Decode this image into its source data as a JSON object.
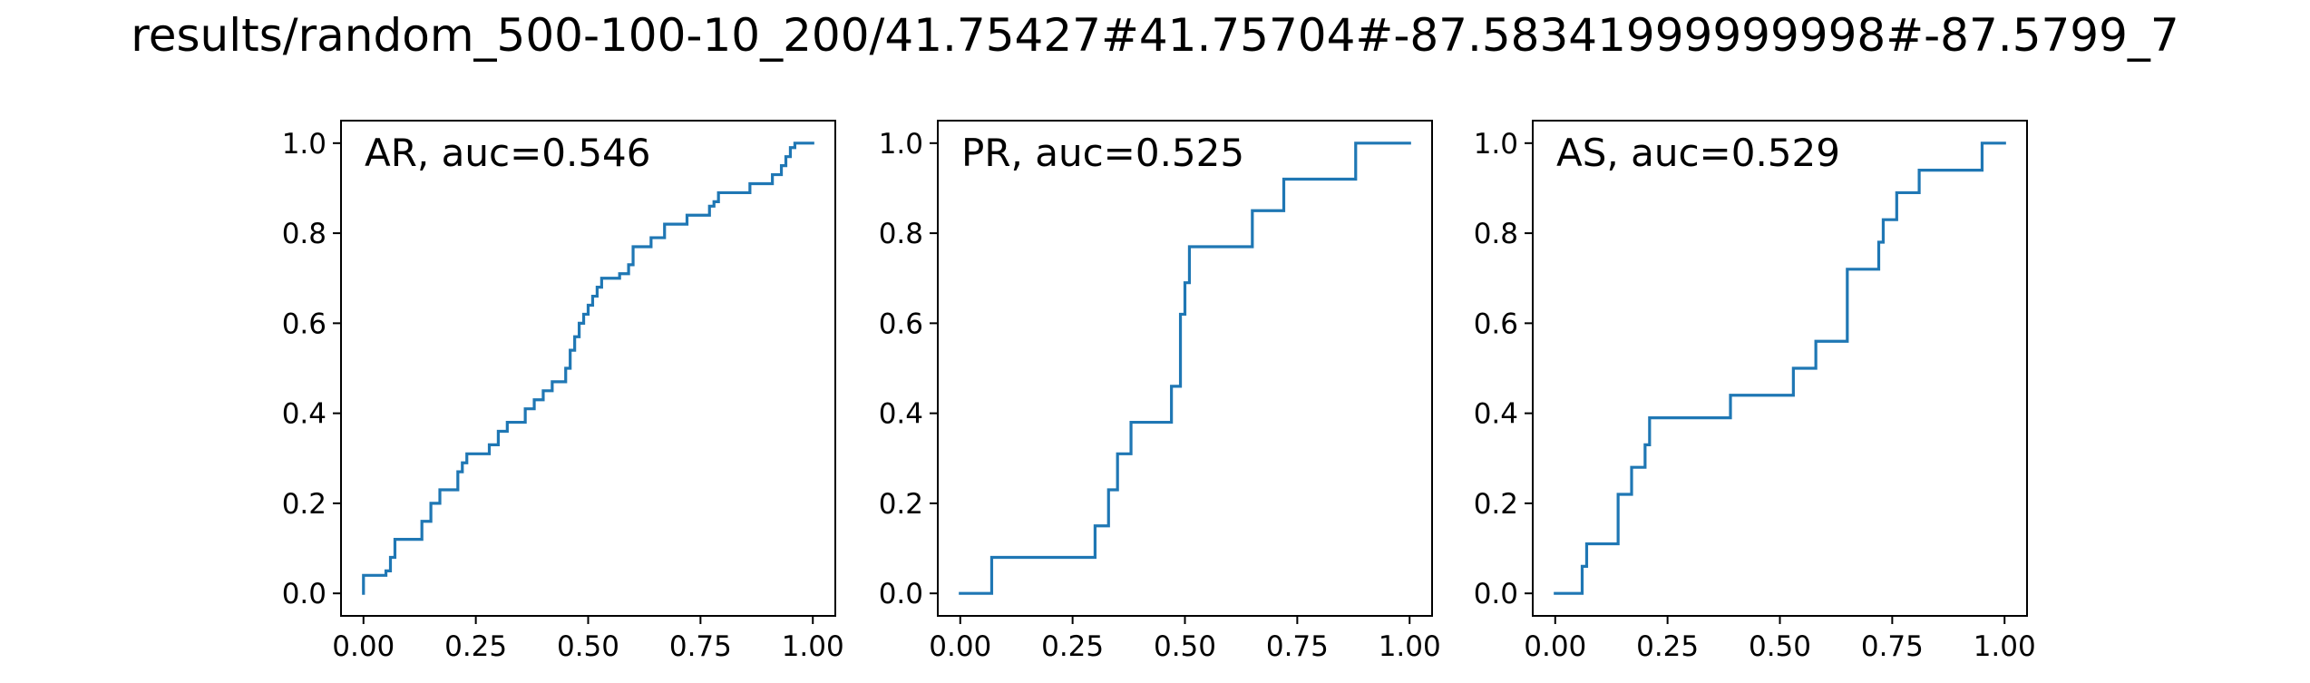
{
  "figure": {
    "title": "results/random_500-100-10_200/41.75427#41.75704#-87.58341999999998#-87.5799_7"
  },
  "chart_data": [
    {
      "type": "line",
      "label": "AR, auc=0.546",
      "xlim": [
        -0.05,
        1.05
      ],
      "ylim": [
        -0.05,
        1.05
      ],
      "xticks": [
        "0.00",
        "0.25",
        "0.50",
        "0.75",
        "1.00"
      ],
      "yticks": [
        "0.0",
        "0.2",
        "0.4",
        "0.6",
        "0.8",
        "1.0"
      ],
      "grid": false,
      "color": "#1f77b4",
      "series": [
        {
          "x": [
            0,
            0,
            0.05,
            0.05,
            0.06,
            0.06,
            0.07,
            0.07,
            0.13,
            0.13,
            0.15,
            0.15,
            0.17,
            0.17,
            0.21,
            0.21,
            0.22,
            0.22,
            0.23,
            0.23,
            0.28,
            0.28,
            0.3,
            0.3,
            0.32,
            0.32,
            0.36,
            0.36,
            0.38,
            0.38,
            0.4,
            0.4,
            0.42,
            0.42,
            0.45,
            0.45,
            0.46,
            0.46,
            0.47,
            0.47,
            0.48,
            0.48,
            0.49,
            0.49,
            0.5,
            0.5,
            0.51,
            0.51,
            0.52,
            0.52,
            0.53,
            0.53,
            0.57,
            0.57,
            0.59,
            0.59,
            0.6,
            0.6,
            0.64,
            0.64,
            0.67,
            0.67,
            0.72,
            0.72,
            0.77,
            0.77,
            0.78,
            0.78,
            0.79,
            0.79,
            0.86,
            0.86,
            0.91,
            0.91,
            0.93,
            0.93,
            0.94,
            0.94,
            0.95,
            0.95,
            0.96,
            0.96,
            0.97,
            0.97,
            0.98,
            0.98,
            1.0
          ],
          "y": [
            0,
            0.04,
            0.04,
            0.05,
            0.05,
            0.08,
            0.08,
            0.12,
            0.12,
            0.16,
            0.16,
            0.2,
            0.2,
            0.23,
            0.23,
            0.27,
            0.27,
            0.29,
            0.29,
            0.31,
            0.31,
            0.33,
            0.33,
            0.36,
            0.36,
            0.38,
            0.38,
            0.41,
            0.41,
            0.43,
            0.43,
            0.45,
            0.45,
            0.47,
            0.47,
            0.5,
            0.5,
            0.54,
            0.54,
            0.57,
            0.57,
            0.6,
            0.6,
            0.62,
            0.62,
            0.64,
            0.64,
            0.66,
            0.66,
            0.68,
            0.68,
            0.7,
            0.7,
            0.71,
            0.71,
            0.73,
            0.73,
            0.77,
            0.77,
            0.79,
            0.79,
            0.82,
            0.82,
            0.84,
            0.84,
            0.86,
            0.86,
            0.87,
            0.87,
            0.89,
            0.89,
            0.91,
            0.91,
            0.93,
            0.93,
            0.95,
            0.95,
            0.97,
            0.97,
            0.99,
            0.99,
            1.0,
            1.0,
            1.0,
            1.0,
            1.0,
            1.0
          ]
        }
      ]
    },
    {
      "type": "line",
      "label": "PR, auc=0.525",
      "xlim": [
        -0.05,
        1.05
      ],
      "ylim": [
        -0.05,
        1.05
      ],
      "xticks": [
        "0.00",
        "0.25",
        "0.50",
        "0.75",
        "1.00"
      ],
      "yticks": [
        "0.0",
        "0.2",
        "0.4",
        "0.6",
        "0.8",
        "1.0"
      ],
      "grid": false,
      "color": "#1f77b4",
      "series": [
        {
          "x": [
            0,
            0.07,
            0.07,
            0.3,
            0.3,
            0.33,
            0.33,
            0.35,
            0.35,
            0.38,
            0.38,
            0.47,
            0.47,
            0.49,
            0.49,
            0.5,
            0.5,
            0.51,
            0.51,
            0.65,
            0.65,
            0.72,
            0.72,
            0.88,
            0.88,
            1.0
          ],
          "y": [
            0,
            0,
            0.08,
            0.08,
            0.15,
            0.15,
            0.23,
            0.23,
            0.31,
            0.31,
            0.38,
            0.38,
            0.46,
            0.46,
            0.62,
            0.62,
            0.69,
            0.69,
            0.77,
            0.77,
            0.85,
            0.85,
            0.92,
            0.92,
            1.0,
            1.0
          ]
        }
      ]
    },
    {
      "type": "line",
      "label": "AS, auc=0.529",
      "xlim": [
        -0.05,
        1.05
      ],
      "ylim": [
        -0.05,
        1.05
      ],
      "xticks": [
        "0.00",
        "0.25",
        "0.50",
        "0.75",
        "1.00"
      ],
      "yticks": [
        "0.0",
        "0.2",
        "0.4",
        "0.6",
        "0.8",
        "1.0"
      ],
      "grid": false,
      "color": "#1f77b4",
      "series": [
        {
          "x": [
            0,
            0.06,
            0.06,
            0.07,
            0.07,
            0.14,
            0.14,
            0.17,
            0.17,
            0.2,
            0.2,
            0.21,
            0.21,
            0.39,
            0.39,
            0.53,
            0.53,
            0.58,
            0.58,
            0.65,
            0.65,
            0.72,
            0.72,
            0.73,
            0.73,
            0.76,
            0.76,
            0.81,
            0.81,
            0.95,
            0.95,
            1.0
          ],
          "y": [
            0,
            0,
            0.06,
            0.06,
            0.11,
            0.11,
            0.22,
            0.22,
            0.28,
            0.28,
            0.33,
            0.33,
            0.39,
            0.39,
            0.44,
            0.44,
            0.5,
            0.5,
            0.56,
            0.56,
            0.72,
            0.72,
            0.78,
            0.78,
            0.83,
            0.83,
            0.89,
            0.89,
            0.94,
            0.94,
            1.0,
            1.0
          ]
        }
      ]
    }
  ]
}
